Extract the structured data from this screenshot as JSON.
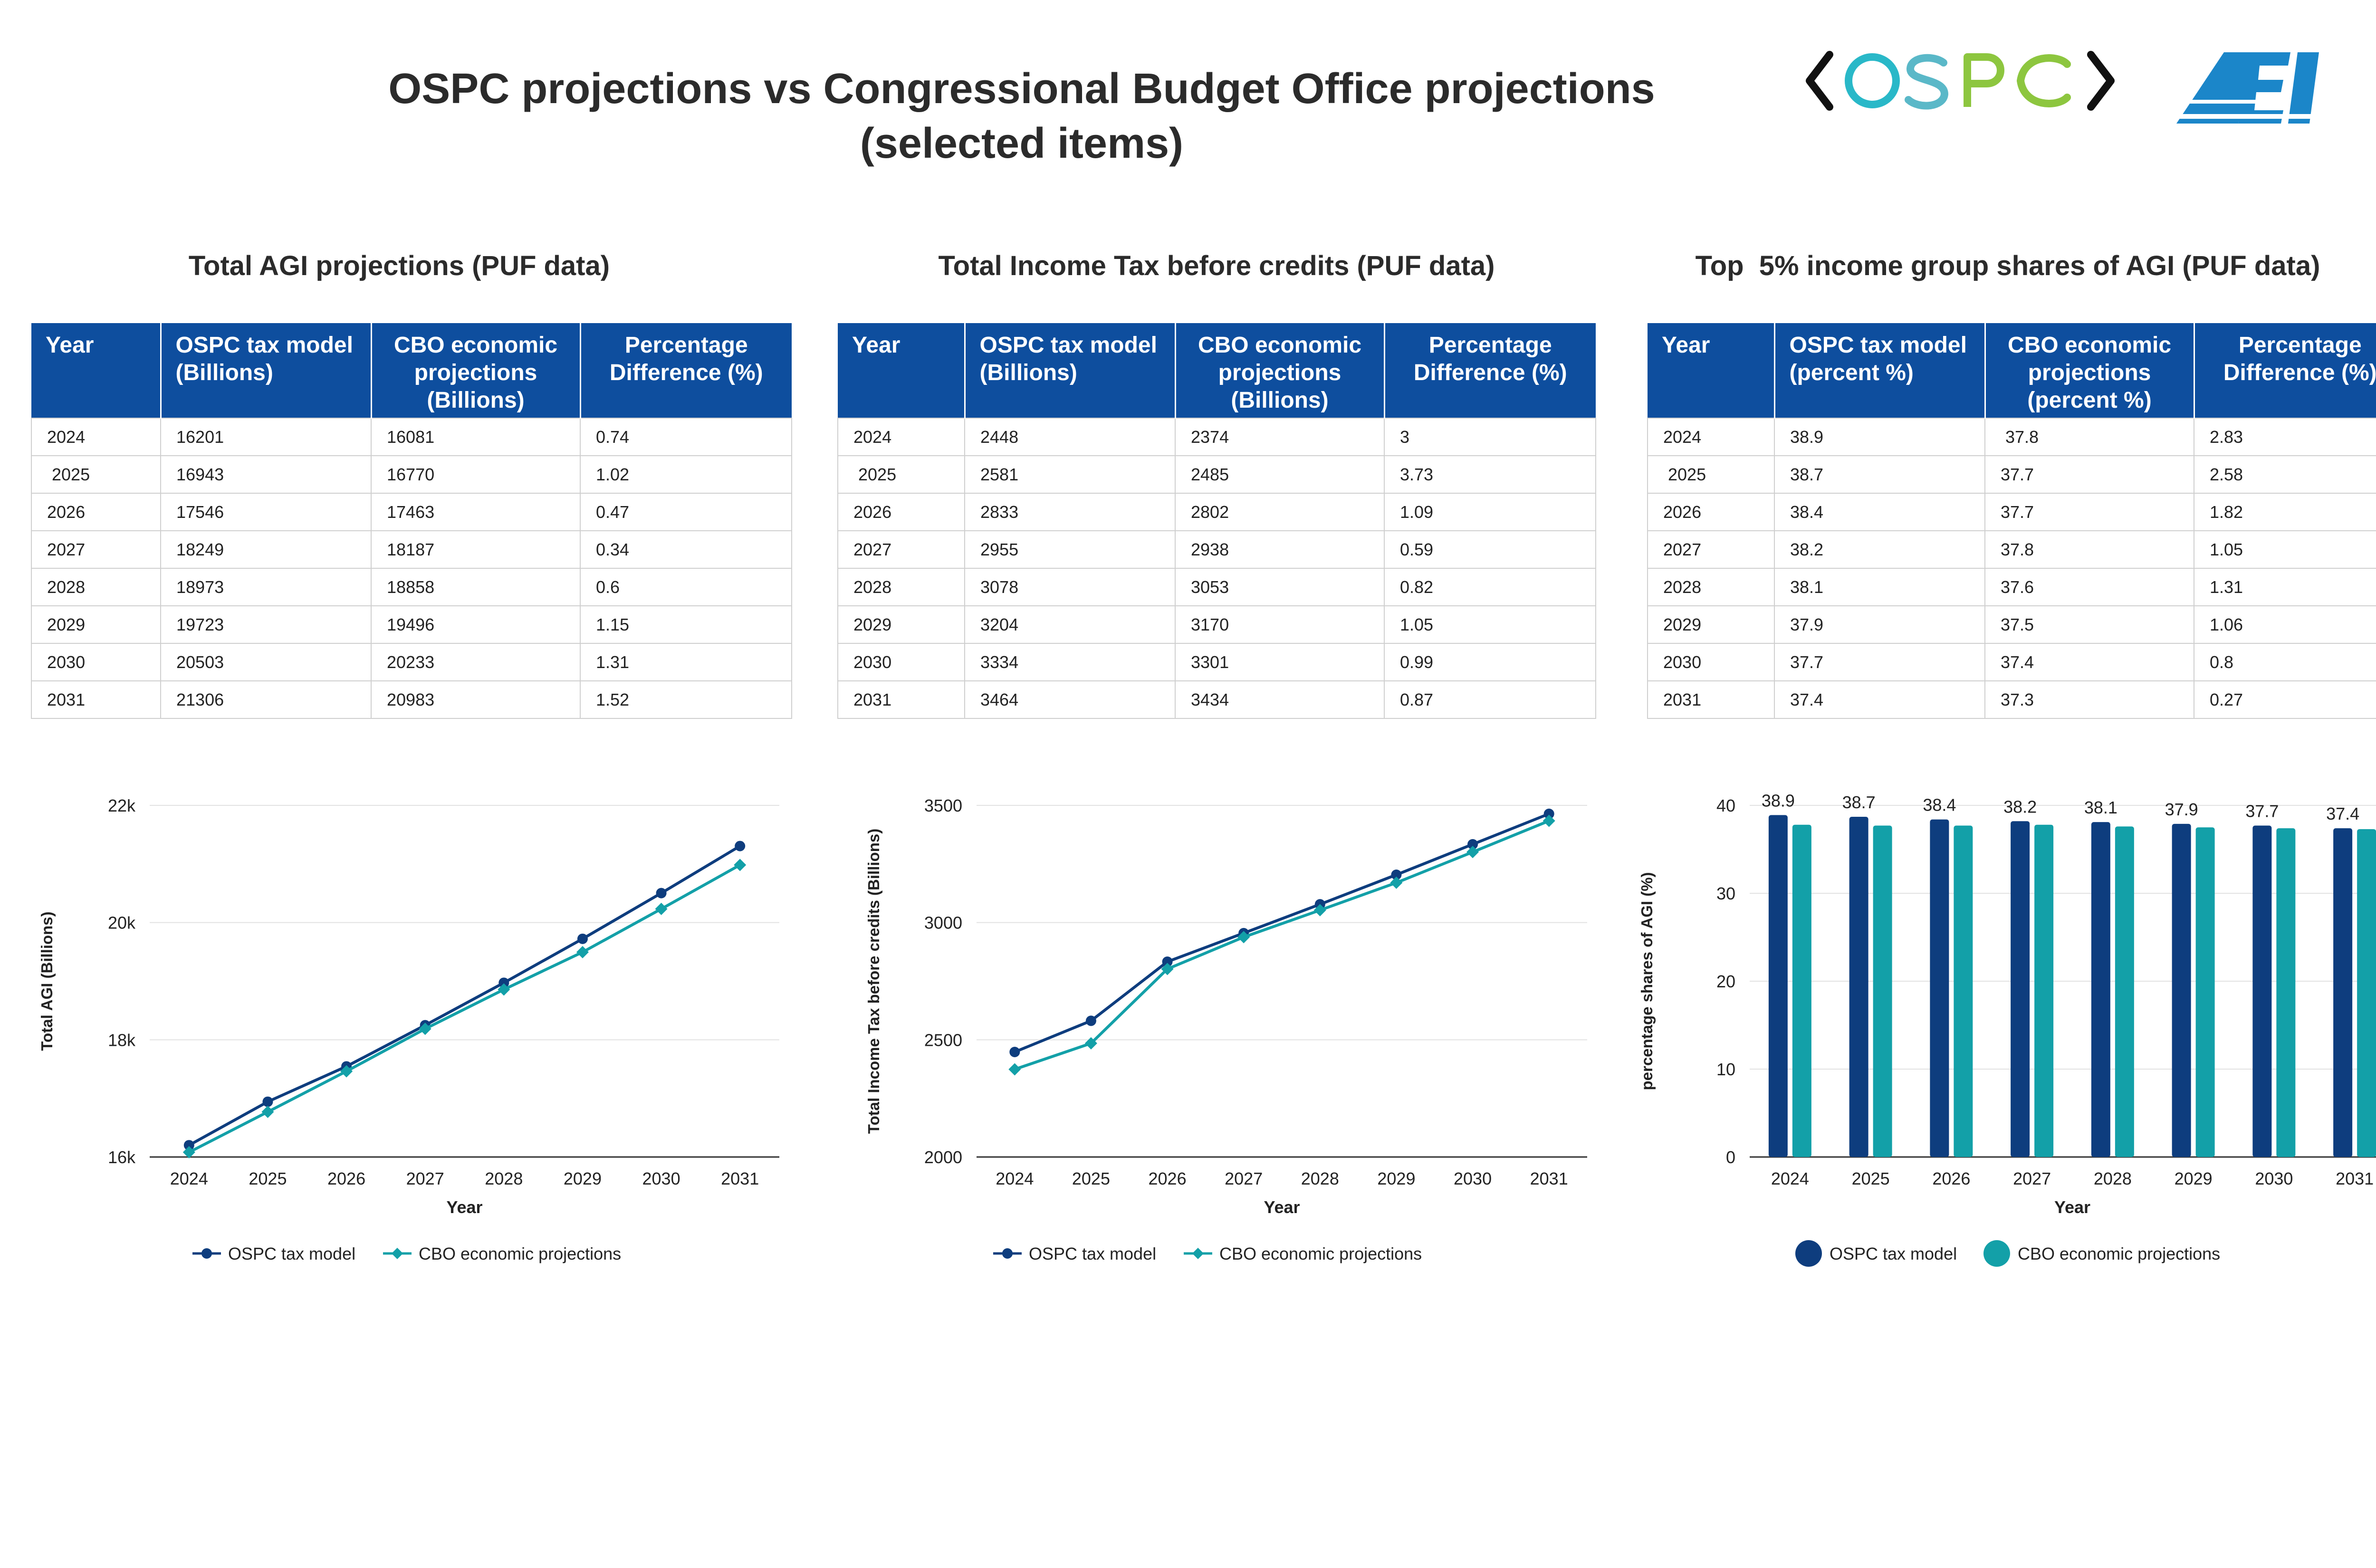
{
  "header": {
    "title_line1": "OSPC projections vs Congressional Budget Office projections",
    "title_line2": "(selected items)",
    "logos": {
      "left": "OSPC",
      "right": "AEI"
    }
  },
  "colors": {
    "ospc": "#0e3d7e",
    "cbo": "#13a0a8",
    "header_bg": "#0e4e9e",
    "ospc_logo": [
      "#29b8c8",
      "#5ab8c8",
      "#8dc63f",
      "#8dc63f"
    ],
    "aei_logo": "#1b86c9"
  },
  "sections": [
    {
      "title": "Total AGI projections (PUF data)",
      "table": {
        "headers": [
          "Year",
          "OSPC tax model (Billions)",
          "CBO economic projections (Billions)",
          "Percentage Difference (%)"
        ],
        "rows": [
          [
            "2024",
            "16201",
            "16081",
            "0.74"
          ],
          [
            " 2025",
            "16943",
            "16770",
            "1.02"
          ],
          [
            "2026",
            "17546",
            "17463",
            "0.47"
          ],
          [
            "2027",
            "18249",
            "18187",
            "0.34"
          ],
          [
            "2028",
            "18973",
            "18858",
            "0.6"
          ],
          [
            "2029",
            "19723",
            "19496",
            "1.15"
          ],
          [
            "2030",
            "20503",
            "20233",
            "1.31"
          ],
          [
            "2031",
            "21306",
            "20983",
            "1.52"
          ]
        ]
      }
    },
    {
      "title": "Total Income Tax before credits (PUF data)",
      "table": {
        "headers": [
          "Year",
          "OSPC tax model (Billions)",
          "CBO economic projections (Billions)",
          "Percentage Difference (%)"
        ],
        "rows": [
          [
            "2024",
            "2448",
            "2374",
            "3"
          ],
          [
            " 2025",
            "2581",
            "2485",
            "3.73"
          ],
          [
            "2026",
            "2833",
            "2802",
            "1.09"
          ],
          [
            "2027",
            "2955",
            "2938",
            "0.59"
          ],
          [
            "2028",
            "3078",
            "3053",
            "0.82"
          ],
          [
            "2029",
            "3204",
            "3170",
            "1.05"
          ],
          [
            "2030",
            "3334",
            "3301",
            "0.99"
          ],
          [
            "2031",
            "3464",
            "3434",
            "0.87"
          ]
        ]
      }
    },
    {
      "title": "Top  5% income group shares of AGI (PUF data)",
      "table": {
        "headers": [
          "Year",
          "OSPC tax model (percent %)",
          "CBO economic projections (percent %)",
          "Percentage Difference (%)"
        ],
        "rows": [
          [
            "2024",
            "38.9",
            " 37.8",
            "2.83"
          ],
          [
            " 2025",
            "38.7",
            "37.7",
            "2.58"
          ],
          [
            "2026",
            "38.4",
            "37.7",
            "1.82"
          ],
          [
            "2027",
            "38.2",
            "37.8",
            "1.05"
          ],
          [
            "2028",
            "38.1",
            "37.6",
            "1.31"
          ],
          [
            "2029",
            "37.9",
            "37.5",
            "1.06"
          ],
          [
            "2030",
            "37.7",
            "37.4",
            "0.8"
          ],
          [
            "2031",
            "37.4",
            "37.3",
            "0.27"
          ]
        ]
      }
    }
  ],
  "chart_data": [
    {
      "type": "line",
      "x": [
        "2024",
        "2025",
        "2026",
        "2027",
        "2028",
        "2029",
        "2030",
        "2031"
      ],
      "series": [
        {
          "name": "OSPC tax model",
          "values": [
            16201,
            16943,
            17546,
            18249,
            18973,
            19723,
            20503,
            21306
          ]
        },
        {
          "name": "CBO economic projections",
          "values": [
            16081,
            16770,
            17463,
            18187,
            18858,
            19496,
            20233,
            20983
          ]
        }
      ],
      "xlabel": "Year",
      "ylabel": "Total AGI (Billions)",
      "ylim": [
        16000,
        22000
      ],
      "yticks": [
        16000,
        18000,
        20000,
        22000
      ],
      "ytick_labels": [
        "16k",
        "18k",
        "20k",
        "22k"
      ],
      "grid": true,
      "legend": "bottom"
    },
    {
      "type": "line",
      "x": [
        "2024",
        "2025",
        "2026",
        "2027",
        "2028",
        "2029",
        "2030",
        "2031"
      ],
      "series": [
        {
          "name": "OSPC tax model",
          "values": [
            2448,
            2581,
            2833,
            2955,
            3078,
            3204,
            3334,
            3464
          ]
        },
        {
          "name": "CBO economic projections",
          "values": [
            2374,
            2485,
            2802,
            2938,
            3053,
            3170,
            3301,
            3434
          ]
        }
      ],
      "xlabel": "Year",
      "ylabel": "Total Income Tax before credits (Billions)",
      "ylim": [
        2000,
        3500
      ],
      "yticks": [
        2000,
        2500,
        3000,
        3500
      ],
      "ytick_labels": [
        "2000",
        "2500",
        "3000",
        "3500"
      ],
      "grid": true,
      "legend": "bottom"
    },
    {
      "type": "bar",
      "categories": [
        "2024",
        "2025",
        "2026",
        "2027",
        "2028",
        "2029",
        "2030",
        "2031"
      ],
      "series": [
        {
          "name": "OSPC tax model",
          "values": [
            38.9,
            38.7,
            38.4,
            38.2,
            38.1,
            37.9,
            37.7,
            37.4
          ]
        },
        {
          "name": "CBO economic projections",
          "values": [
            37.8,
            37.7,
            37.7,
            37.8,
            37.6,
            37.5,
            37.4,
            37.3
          ]
        }
      ],
      "data_labels": [
        "38.9",
        "38.7",
        "38.4",
        "38.2",
        "38.1",
        "37.9",
        "37.7",
        "37.4"
      ],
      "xlabel": "Year",
      "ylabel": "percentage shares of AGI (%)",
      "ylim": [
        0,
        40
      ],
      "yticks": [
        0,
        10,
        20,
        30,
        40
      ],
      "ytick_labels": [
        "0",
        "10",
        "20",
        "30",
        "40"
      ],
      "grid": true,
      "legend": "bottom"
    }
  ]
}
